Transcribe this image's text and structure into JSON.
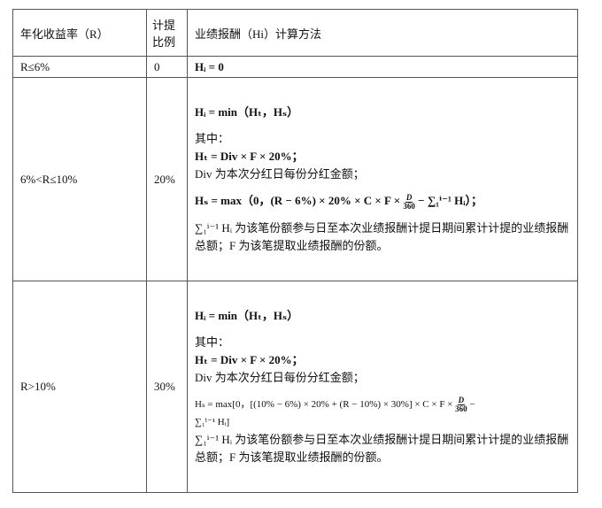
{
  "headers": [
    "年化收益率（R）",
    "计提比例",
    "业绩报酬（Hi）计算方法"
  ],
  "rows": [
    {
      "rate": "R≤6%",
      "ratio": "0",
      "method": "Hᵢ = 0"
    },
    {
      "rate": "6%<R≤10%",
      "ratio": "20%",
      "lines": {
        "hi": "Hᵢ = min（Hₜ，Hₛ）",
        "where": "其中：",
        "ht": "Hₜ = Div × F × 20%；",
        "div": "Div 为本次分红日每份分红金额；",
        "hs_pre": "Hₛ = max（0，(R − 6%) × 20% × C × F ×",
        "frac_num": "D",
        "frac_den": "360",
        "hs_post": "− ∑₁ⁱ⁻¹ Hᵢ）；",
        "sum_note": "∑₁ⁱ⁻¹ Hᵢ 为该笔份额参与日至本次业绩报酬计提日期间累计计提的业绩报酬总额；F 为该笔提取业绩报酬的份额。"
      }
    },
    {
      "rate": "R>10%",
      "ratio": "30%",
      "lines": {
        "hi": "Hᵢ = min（Hₜ，Hₛ）",
        "where": "其中：",
        "ht": "Hₜ = Div × F × 20%；",
        "div": "Div 为本次分红日每份分红金额；",
        "hs_pre": "Hₛ = max[0，[(10% − 6%) × 20% + (R − 10%) × 30%] × C × F ×",
        "frac_num": "D",
        "frac_den": "360",
        "hs_post": "−",
        "hs_cont": "∑₁ⁱ⁻¹ Hᵢ]",
        "sum_note": "∑₁ⁱ⁻¹ Hᵢ 为该笔份额参与日至本次业绩报酬计提日期间累计计提的业绩报酬总额；F 为该笔提取业绩报酬的份额。"
      }
    }
  ]
}
